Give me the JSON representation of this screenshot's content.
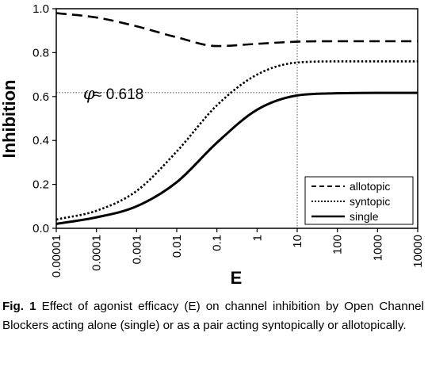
{
  "chart_data": {
    "type": "line",
    "xlabel": "E",
    "ylabel": "Inhibition",
    "x_scale": "log",
    "xlim": [
      1e-05,
      10000
    ],
    "ylim": [
      0,
      1
    ],
    "x_ticks": [
      "0.00001",
      "0.0001",
      "0.001",
      "0.01",
      "0.1",
      "1",
      "10",
      "100",
      "1000",
      "10000"
    ],
    "y_ticks": [
      "0.0",
      "0.2",
      "0.4",
      "0.6",
      "0.8",
      "1.0"
    ],
    "grid": false,
    "legend_position": "bottom-right",
    "reference_lines": [
      {
        "axis": "x",
        "value": 10,
        "style": "dotted"
      },
      {
        "axis": "y",
        "value": 0.618,
        "style": "dotted"
      }
    ],
    "annotation": {
      "symbol": "φ",
      "text": "≈ 0.618",
      "x": 0.0001,
      "y": 0.618
    },
    "x": [
      1e-05,
      0.0001,
      0.001,
      0.01,
      0.1,
      1,
      10,
      100,
      1000,
      10000
    ],
    "series": [
      {
        "name": "allotopic",
        "style": "dashed",
        "values": [
          0.98,
          0.96,
          0.92,
          0.87,
          0.83,
          0.84,
          0.85,
          0.852,
          0.852,
          0.852
        ]
      },
      {
        "name": "syntopic",
        "style": "dotted",
        "values": [
          0.04,
          0.08,
          0.17,
          0.35,
          0.56,
          0.7,
          0.755,
          0.76,
          0.76,
          0.76
        ]
      },
      {
        "name": "single",
        "style": "solid",
        "values": [
          0.02,
          0.05,
          0.1,
          0.21,
          0.39,
          0.54,
          0.605,
          0.615,
          0.617,
          0.617
        ]
      }
    ]
  },
  "caption": {
    "label": "Fig. 1",
    "text": "Effect of agonist efficacy (E) on channel inhibition by Open Channel Blockers acting alone (single) or as a pair acting syntopically or allotopically."
  }
}
